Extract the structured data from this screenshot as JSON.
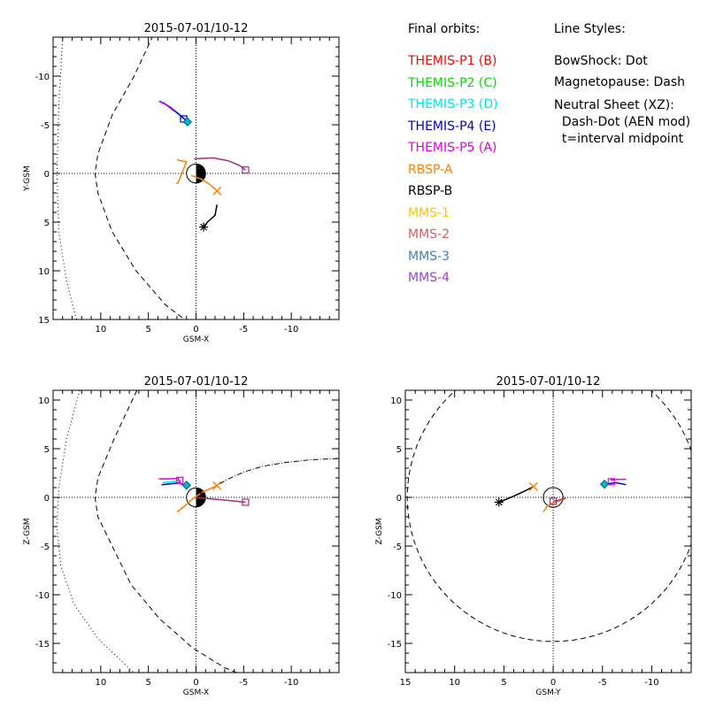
{
  "legend": {
    "heading": "Final orbits:",
    "items": [
      {
        "label": "THEMIS-P1 (B)",
        "color": "#ff0000"
      },
      {
        "label": "THEMIS-P2 (C)",
        "color": "#00dd00"
      },
      {
        "label": "THEMIS-P3 (D)",
        "color": "#00e5e5"
      },
      {
        "label": "THEMIS-P4 (E)",
        "color": "#0000cc"
      },
      {
        "label": "THEMIS-P5 (A)",
        "color": "#e000e0"
      },
      {
        "label": "RBSP-A",
        "color": "#ff8000"
      },
      {
        "label": "RBSP-B",
        "color": "#000000"
      },
      {
        "label": "MMS-1",
        "color": "#ffc000"
      },
      {
        "label": "MMS-2",
        "color": "#d06060"
      },
      {
        "label": "MMS-3",
        "color": "#4080c0"
      },
      {
        "label": "MMS-4",
        "color": "#a040d0"
      }
    ]
  },
  "line_styles": {
    "heading": "Line Styles:",
    "lines": [
      "BowShock: Dot",
      "Magnetopause: Dash",
      "Neutral Sheet (XZ):",
      "  Dash-Dot (AEN mod)",
      "  t=interval midpoint"
    ]
  },
  "chart_data": [
    {
      "type": "line",
      "title": "2015-07-01/10-12",
      "xlabel": "GSM-X",
      "ylabel": "Y-GSM",
      "xlim": [
        15,
        -15
      ],
      "ylim": [
        15,
        -14
      ],
      "xticks": [
        10,
        5,
        0,
        -5,
        -10
      ],
      "yticks": [
        -10,
        -5,
        0,
        5,
        10,
        15
      ],
      "grid": false,
      "bowshock": [
        [
          14,
          -14
        ],
        [
          14.4,
          -7
        ],
        [
          14.6,
          0
        ],
        [
          14.4,
          6
        ],
        [
          13.6,
          11
        ],
        [
          12.5,
          15.2
        ]
      ],
      "magnetopause": [
        [
          4.5,
          -14.2
        ],
        [
          6.5,
          -10
        ],
        [
          8.8,
          -6
        ],
        [
          10.3,
          -2
        ],
        [
          10.6,
          0
        ],
        [
          10.3,
          2
        ],
        [
          8.8,
          6
        ],
        [
          6.3,
          10
        ],
        [
          3.2,
          13.5
        ],
        [
          1.2,
          15
        ]
      ],
      "series": [
        {
          "key": "themis_p5_a",
          "color": "#9c2f86",
          "points": [
            [
              0.2,
              -1.5
            ],
            [
              -1.8,
              -1.6
            ],
            [
              -3.4,
              -1.3
            ],
            [
              -4.6,
              -0.8
            ],
            [
              -5.2,
              -0.35
            ]
          ]
        },
        {
          "key": "rbsp_a",
          "color": "#ff8000",
          "points": [
            [
              2.0,
              -1.4
            ],
            [
              1.0,
              -1.2
            ],
            [
              1.7,
              0.5
            ],
            [
              1.9,
              1.0
            ],
            [
              2.1,
              1.0
            ]
          ]
        },
        {
          "key": "rbsp_b",
          "color": "#000000",
          "points": [
            [
              -2.2,
              3.2
            ],
            [
              -2.0,
              4.3
            ],
            [
              -1.2,
              5.0
            ],
            [
              -0.8,
              5.5
            ]
          ]
        },
        {
          "key": "rbsp_a_tail",
          "color": "#ff8000",
          "points": [
            [
              0.5,
              0.2
            ],
            [
              -0.6,
              0.6
            ],
            [
              -1.4,
              1.1
            ],
            [
              -2.2,
              1.8
            ]
          ]
        },
        {
          "key": "themis_p3_d",
          "color": "#00e5e5",
          "points": [
            [
              3.8,
              -7.5
            ],
            [
              3.0,
              -7.0
            ],
            [
              2.0,
              -6.2
            ],
            [
              1.1,
              -5.5
            ]
          ]
        },
        {
          "key": "themis_p4_e",
          "color": "#0000cc",
          "points": [
            [
              3.5,
              -7.3
            ],
            [
              2.7,
              -6.8
            ],
            [
              1.8,
              -6.1
            ],
            [
              1.0,
              -5.4
            ]
          ]
        },
        {
          "key": "themis_p5_a_near",
          "color": "#e000e0",
          "points": [
            [
              3.9,
              -7.4
            ],
            [
              3.2,
              -7.1
            ],
            [
              2.3,
              -6.4
            ]
          ]
        }
      ],
      "markers": [
        {
          "key": "themis_p4_e",
          "x": 1.3,
          "y": -5.6,
          "shape": "square",
          "color": "#0000cc"
        },
        {
          "key": "themis_p3_d",
          "x": 0.9,
          "y": -5.3,
          "shape": "diamond",
          "color": "#00b8b8"
        },
        {
          "key": "themis_p5_a",
          "x": -5.2,
          "y": -0.35,
          "shape": "square",
          "color": "#9c2f86"
        },
        {
          "key": "rbsp_a",
          "x": -2.2,
          "y": 1.8,
          "shape": "x",
          "color": "#ff8000"
        },
        {
          "key": "rbsp_b",
          "x": -0.8,
          "y": 5.5,
          "shape": "star",
          "color": "#000000"
        }
      ],
      "earth": "day-left"
    },
    {
      "type": "line",
      "title": "2015-07-01/10-12",
      "xlabel": "GSM-X",
      "ylabel": "Z-GSM",
      "xlim": [
        15,
        -15
      ],
      "ylim": [
        -18,
        11
      ],
      "xticks": [
        10,
        5,
        0,
        -5,
        -10
      ],
      "yticks": [
        10,
        5,
        0,
        -5,
        -10,
        -15
      ],
      "grid": false,
      "bowshock": [
        [
          12.2,
          11
        ],
        [
          13.6,
          6
        ],
        [
          14.4,
          1
        ],
        [
          14.6,
          -3
        ],
        [
          14.2,
          -7
        ],
        [
          12.8,
          -11
        ],
        [
          10.3,
          -14.5
        ],
        [
          6.0,
          -18.5
        ]
      ],
      "magnetopause": [
        [
          6.2,
          11
        ],
        [
          8.6,
          6
        ],
        [
          10.3,
          2
        ],
        [
          10.6,
          0
        ],
        [
          10.3,
          -2
        ],
        [
          8.8,
          -5
        ],
        [
          6.8,
          -9
        ],
        [
          3.8,
          -12.5
        ],
        [
          0.3,
          -15.5
        ],
        [
          -3.0,
          -17.5
        ],
        [
          -5.5,
          -18.5
        ]
      ],
      "neutral_sheet": [
        [
          -1.6,
          0.9
        ],
        [
          -3.2,
          1.8
        ],
        [
          -5.0,
          2.6
        ],
        [
          -7.0,
          3.2
        ],
        [
          -9.5,
          3.6
        ],
        [
          -12.0,
          3.85
        ],
        [
          -15.0,
          4.0
        ]
      ],
      "series": [
        {
          "key": "themis_p5_a",
          "color": "#9c2f86",
          "points": [
            [
              0.2,
              0.0
            ],
            [
              -1.5,
              -0.15
            ],
            [
              -3.2,
              -0.3
            ],
            [
              -5.2,
              -0.5
            ]
          ]
        },
        {
          "key": "rbsp_a",
          "color": "#ff8000",
          "points": [
            [
              2.0,
              -1.5
            ],
            [
              1.2,
              -0.9
            ],
            [
              0.3,
              -0.1
            ],
            [
              -0.8,
              0.6
            ],
            [
              -2.2,
              1.2
            ]
          ]
        },
        {
          "key": "rbsp_b",
          "color": "#000000",
          "points": [
            [
              -0.1,
              0.6
            ],
            [
              -0.6,
              0.4
            ],
            [
              -0.9,
              0.0
            ]
          ]
        },
        {
          "key": "themis_p3_d",
          "color": "#00e5e5",
          "points": [
            [
              3.5,
              1.5
            ],
            [
              2.5,
              1.6
            ],
            [
              1.5,
              1.7
            ]
          ]
        },
        {
          "key": "themis_p4_e",
          "color": "#0000cc",
          "points": [
            [
              3.6,
              1.3
            ],
            [
              2.6,
              1.4
            ],
            [
              1.6,
              1.5
            ]
          ]
        },
        {
          "key": "themis_p5_a_near",
          "color": "#e000e0",
          "points": [
            [
              3.9,
              1.9
            ],
            [
              2.9,
              1.9
            ],
            [
              1.9,
              1.95
            ],
            [
              1.6,
              1.4
            ],
            [
              1.2,
              1.1
            ]
          ]
        }
      ],
      "markers": [
        {
          "key": "themis_p5_a_near",
          "x": 1.7,
          "y": 1.75,
          "shape": "square",
          "color": "#e000e0"
        },
        {
          "key": "themis_p3_d",
          "x": 1.0,
          "y": 1.25,
          "shape": "diamond",
          "color": "#00b8b8"
        },
        {
          "key": "themis_p5_a",
          "x": -5.2,
          "y": -0.5,
          "shape": "square",
          "color": "#9c2f86"
        },
        {
          "key": "rbsp_a",
          "x": -2.2,
          "y": 1.2,
          "shape": "x",
          "color": "#ff8000"
        }
      ],
      "earth": "day-left"
    },
    {
      "type": "line",
      "title": "2015-07-01/10-12",
      "xlabel": "GSM-Y",
      "ylabel": "Z-GSM",
      "xlim": [
        15,
        -14
      ],
      "ylim": [
        -18,
        11
      ],
      "xticks": [
        15,
        10,
        5,
        0,
        -5,
        -10
      ],
      "yticks": [
        10,
        5,
        0,
        -5,
        -10,
        -15
      ],
      "grid": false,
      "magnetopause_circle": {
        "cx": 0,
        "cy": 0,
        "r": 14.8
      },
      "series": [
        {
          "key": "rbsp_b",
          "color": "#000000",
          "points": [
            [
              5.5,
              -0.5
            ],
            [
              4.3,
              0.0
            ],
            [
              3.0,
              0.6
            ],
            [
              2.0,
              1.1
            ]
          ]
        },
        {
          "key": "rbsp_a",
          "color": "#ff8000",
          "points": [
            [
              1.0,
              -1.5
            ],
            [
              0.6,
              -0.9
            ],
            [
              0.1,
              -0.6
            ],
            [
              -0.8,
              -0.3
            ],
            [
              -1.3,
              -0.1
            ]
          ]
        },
        {
          "key": "themis_p5_a",
          "color": "#9c2f86",
          "points": [
            [
              0.0,
              -0.4
            ],
            [
              -0.5,
              -0.3
            ],
            [
              -1.2,
              -0.1
            ]
          ]
        },
        {
          "key": "themis_p4_e",
          "color": "#0000cc",
          "points": [
            [
              -5.5,
              1.4
            ],
            [
              -6.4,
              1.5
            ],
            [
              -7.4,
              1.3
            ]
          ]
        },
        {
          "key": "themis_p5_a_near",
          "color": "#e000e0",
          "points": [
            [
              -5.8,
              1.8
            ],
            [
              -6.6,
              1.85
            ],
            [
              -7.4,
              1.85
            ]
          ]
        }
      ],
      "markers": [
        {
          "key": "rbsp_b",
          "x": 5.5,
          "y": -0.5,
          "shape": "star",
          "color": "#000000"
        },
        {
          "key": "rbsp_a",
          "x": 2.0,
          "y": 1.1,
          "shape": "x",
          "color": "#ff8000"
        },
        {
          "key": "themis_p5_a",
          "x": 0.0,
          "y": -0.4,
          "shape": "square",
          "color": "#9c2f86"
        },
        {
          "key": "themis_p3_d",
          "x": -5.2,
          "y": 1.35,
          "shape": "diamond",
          "color": "#00b8b8"
        },
        {
          "key": "themis_p5_a_near",
          "x": -5.9,
          "y": 1.6,
          "shape": "square",
          "color": "#e000e0"
        }
      ],
      "earth": "circle"
    }
  ]
}
